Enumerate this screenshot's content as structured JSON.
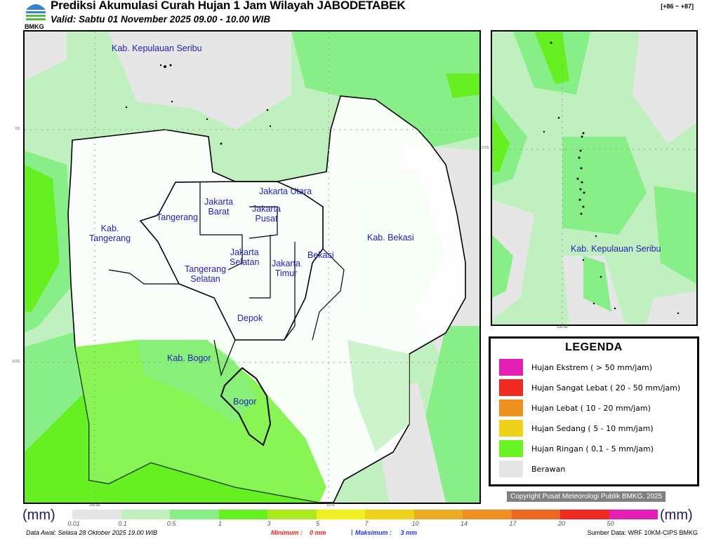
{
  "header": {
    "title": "Prediksi Akumulasi Curah Hujan 1 Jam Wilayah JABODETABEK",
    "valid": "Valid: Sabtu 01 November 2025 09.00 - 10.00 WIB",
    "code": "[+86 ~ +87]",
    "logo_text": "BMKG"
  },
  "main_map": {
    "labels": {
      "kepulauan_seribu": "Kab. Kepulauan Seribu",
      "jakarta_utara": "Jakarta Utara",
      "jakarta_barat": "Jakarta\nBarat",
      "jakarta_pusat": "Jakarta\nPusat",
      "tangerang": "Tangerang",
      "kab_tangerang": "Kab.\nTangerang",
      "kab_bekasi": "Kab. Bekasi",
      "bekasi": "Bekasi",
      "jakarta_selatan": "Jakarta\nSelatan",
      "jakarta_timur": "Jakarta\nTimur",
      "tangerang_selatan": "Tangerang\nSelatan",
      "depok": "Depok",
      "kab_bogor": "Kab. Bogor",
      "bogor": "Bogor"
    },
    "lat_labels": [
      "6S",
      "6.5S"
    ],
    "lon_labels": [
      "106.5E",
      "107E"
    ]
  },
  "inset_map": {
    "label": "Kab. Kepulauan Seribu",
    "lat_label": "5.5S",
    "lon_label": "106.5E"
  },
  "legend": {
    "title": "LEGENDA",
    "items": [
      {
        "label": "Hujan Ekstrem ( > 50 mm/jam)",
        "color": "#e41fb4"
      },
      {
        "label": "Hujan Sangat Lebat ( 20 - 50 mm/jam)",
        "color": "#ee2a22"
      },
      {
        "label": "Hujan Lebat ( 10 - 20 mm/jam)",
        "color": "#ee8f22"
      },
      {
        "label": "Hujan Sedang ( 5 - 10 mm/jam)",
        "color": "#f0d21a"
      },
      {
        "label": "Hujan Ringan ( 0,1 - 5 mm/jam)",
        "color": "#66f522"
      },
      {
        "label": "Berawan",
        "color": "#e6e6e6"
      }
    ]
  },
  "copyright": "Copyright Pusat Meteorologi Publik BMKG, 2025",
  "colorbar": {
    "unit": "(mm)",
    "colors": [
      "#e6e6e6",
      "#c0f0c0",
      "#88ee88",
      "#66f022",
      "#aaea1e",
      "#f0f020",
      "#f0d21a",
      "#eaaa22",
      "#ee8f22",
      "#ea6822",
      "#ee2a22",
      "#e41fb4"
    ],
    "ticks": [
      "0.01",
      "0.1",
      "0.5",
      "1",
      "3",
      "5",
      "7",
      "10",
      "14",
      "17",
      "20",
      "50"
    ]
  },
  "footer": {
    "data_awal": "Data Awal: Selasa 28 Oktober 2025 19.00 WIB",
    "minimum": "Minimum :    0 mm",
    "separator": "|",
    "maksimum": "Maksimum :     3 mm",
    "source": "Sumber Data: WRF 10KM-CIPS BMKG"
  }
}
